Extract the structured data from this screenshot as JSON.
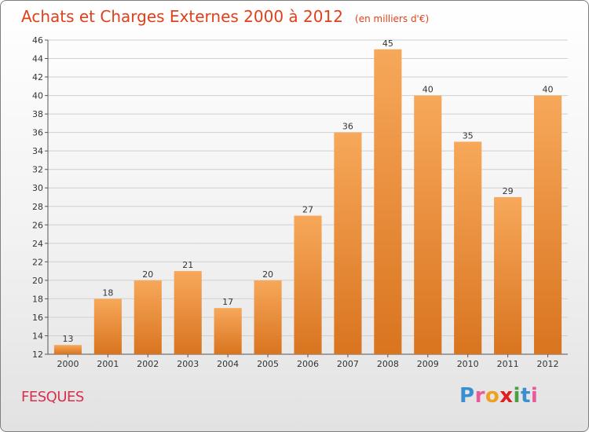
{
  "header": {
    "title": "Achats et Charges Externes 2000 à 2012",
    "subtitle": "(en milliers d'€)"
  },
  "footer": {
    "commune": "FESQUES",
    "logo_letters": [
      {
        "char": "P",
        "color": "#3a8fd0"
      },
      {
        "char": "r",
        "color": "#e95a9a"
      },
      {
        "char": "o",
        "color": "#f0a020"
      },
      {
        "char": "x",
        "color": "#e02020"
      },
      {
        "char": "i",
        "color": "#4aa040"
      },
      {
        "char": "t",
        "color": "#3a8fd0"
      },
      {
        "char": "i",
        "color": "#e95a9a"
      }
    ]
  },
  "colors": {
    "title": "#e0401a",
    "commune": "#d8304e",
    "bar_top": "#f7a85a",
    "bar_bottom": "#d9741f",
    "grid": "#d0d0d0"
  },
  "chart_data": {
    "type": "bar",
    "title": "Achats et Charges Externes 2000 à 2012",
    "subtitle": "(en milliers d'€)",
    "xlabel": "",
    "ylabel": "",
    "categories": [
      "2000",
      "2001",
      "2002",
      "2003",
      "2004",
      "2005",
      "2006",
      "2007",
      "2008",
      "2009",
      "2010",
      "2011",
      "2012"
    ],
    "values": [
      13,
      18,
      20,
      21,
      17,
      20,
      27,
      36,
      45,
      40,
      35,
      29,
      40
    ],
    "ylim": [
      12,
      46
    ],
    "yticks": [
      12,
      14,
      16,
      18,
      20,
      22,
      24,
      26,
      28,
      30,
      32,
      34,
      36,
      38,
      40,
      42,
      44,
      46
    ],
    "grid": true,
    "show_value_labels": true
  }
}
